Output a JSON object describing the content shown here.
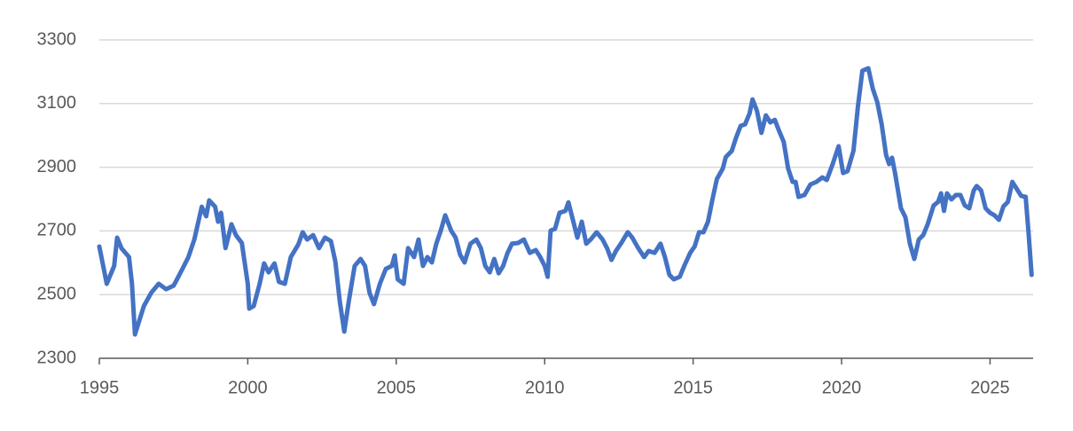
{
  "chart_data": {
    "type": "line",
    "x": [
      1995.0,
      1995.25,
      1995.5,
      1995.6,
      1995.75,
      1996.0,
      1996.1,
      1996.2,
      1996.5,
      1996.75,
      1997.0,
      1997.25,
      1997.5,
      1997.6,
      1997.8,
      1998.0,
      1998.2,
      1998.45,
      1998.6,
      1998.7,
      1998.9,
      1999.0,
      1999.1,
      1999.25,
      1999.45,
      1999.6,
      1999.8,
      2000.0,
      2000.05,
      2000.2,
      2000.4,
      2000.55,
      2000.7,
      2000.9,
      2001.05,
      2001.25,
      2001.45,
      2001.7,
      2001.85,
      2002.0,
      2002.2,
      2002.4,
      2002.6,
      2002.8,
      2002.95,
      2003.1,
      2003.25,
      2003.4,
      2003.6,
      2003.8,
      2003.95,
      2004.1,
      2004.25,
      2004.45,
      2004.65,
      2004.85,
      2004.95,
      2005.05,
      2005.25,
      2005.4,
      2005.6,
      2005.75,
      2005.9,
      2006.05,
      2006.2,
      2006.35,
      2006.5,
      2006.65,
      2006.85,
      2007.0,
      2007.15,
      2007.3,
      2007.5,
      2007.7,
      2007.85,
      2008.0,
      2008.15,
      2008.3,
      2008.45,
      2008.6,
      2008.75,
      2008.9,
      2009.1,
      2009.3,
      2009.5,
      2009.7,
      2009.85,
      2010.0,
      2010.1,
      2010.2,
      2010.35,
      2010.5,
      2010.7,
      2010.8,
      2010.95,
      2011.1,
      2011.25,
      2011.4,
      2011.55,
      2011.75,
      2011.95,
      2012.1,
      2012.25,
      2012.4,
      2012.6,
      2012.8,
      2012.95,
      2013.15,
      2013.35,
      2013.5,
      2013.7,
      2013.9,
      2014.05,
      2014.2,
      2014.35,
      2014.55,
      2014.7,
      2014.9,
      2015.05,
      2015.2,
      2015.35,
      2015.5,
      2015.65,
      2015.8,
      2016.0,
      2016.1,
      2016.3,
      2016.45,
      2016.6,
      2016.75,
      2016.9,
      2017.0,
      2017.15,
      2017.3,
      2017.45,
      2017.6,
      2017.75,
      2017.9,
      2018.05,
      2018.2,
      2018.35,
      2018.45,
      2018.55,
      2018.75,
      2018.95,
      2019.15,
      2019.35,
      2019.5,
      2019.7,
      2019.9,
      2020.05,
      2020.2,
      2020.4,
      2020.55,
      2020.7,
      2020.9,
      2021.05,
      2021.2,
      2021.35,
      2021.5,
      2021.6,
      2021.7,
      2021.8,
      2022.0,
      2022.15,
      2022.3,
      2022.45,
      2022.6,
      2022.75,
      2022.9,
      2023.1,
      2023.25,
      2023.35,
      2023.45,
      2023.55,
      2023.7,
      2023.85,
      2024.0,
      2024.15,
      2024.3,
      2024.45,
      2024.55,
      2024.7,
      2024.85,
      2025.0,
      2025.15,
      2025.3,
      2025.45,
      2025.6,
      2025.75,
      2025.9,
      2026.05,
      2026.2,
      2026.3,
      2026.4
    ],
    "series": [
      {
        "color": "#4472c4",
        "values": [
          2651,
          2534,
          2590,
          2679,
          2645,
          2618,
          2534,
          2375,
          2464,
          2506,
          2534,
          2517,
          2528,
          2545,
          2581,
          2618,
          2673,
          2776,
          2746,
          2796,
          2776,
          2729,
          2757,
          2646,
          2721,
          2687,
          2662,
          2534,
          2456,
          2464,
          2534,
          2598,
          2570,
          2598,
          2540,
          2534,
          2618,
          2657,
          2696,
          2673,
          2687,
          2646,
          2679,
          2668,
          2604,
          2478,
          2384,
          2478,
          2590,
          2612,
          2590,
          2506,
          2470,
          2534,
          2581,
          2590,
          2623,
          2548,
          2534,
          2646,
          2618,
          2673,
          2590,
          2618,
          2601,
          2660,
          2701,
          2749,
          2701,
          2679,
          2626,
          2601,
          2660,
          2673,
          2646,
          2590,
          2570,
          2612,
          2567,
          2590,
          2631,
          2660,
          2662,
          2673,
          2631,
          2640,
          2618,
          2590,
          2556,
          2701,
          2707,
          2757,
          2763,
          2790,
          2735,
          2679,
          2729,
          2660,
          2673,
          2696,
          2673,
          2646,
          2609,
          2637,
          2665,
          2696,
          2679,
          2646,
          2618,
          2637,
          2631,
          2660,
          2618,
          2562,
          2548,
          2556,
          2590,
          2631,
          2651,
          2696,
          2696,
          2729,
          2799,
          2863,
          2896,
          2932,
          2951,
          2994,
          3030,
          3035,
          3069,
          3113,
          3077,
          3008,
          3063,
          3041,
          3049,
          3013,
          2980,
          2896,
          2854,
          2854,
          2807,
          2813,
          2846,
          2854,
          2868,
          2860,
          2910,
          2966,
          2882,
          2888,
          2952,
          3091,
          3203,
          3211,
          3147,
          3105,
          3035,
          2938,
          2910,
          2930,
          2882,
          2771,
          2743,
          2660,
          2612,
          2673,
          2687,
          2721,
          2780,
          2791,
          2818,
          2763,
          2818,
          2799,
          2813,
          2813,
          2780,
          2771,
          2827,
          2841,
          2827,
          2771,
          2757,
          2749,
          2735,
          2777,
          2791,
          2854,
          2832,
          2810,
          2807,
          2690,
          2562
        ]
      }
    ],
    "xlim": [
      1995,
      2026.45
    ],
    "xticks": [
      1995,
      2000,
      2005,
      2010,
      2015,
      2020,
      2025
    ],
    "ylim": [
      2300,
      3300
    ],
    "yticks": [
      2300,
      2500,
      2700,
      2900,
      3100,
      3300
    ],
    "grid": true
  }
}
